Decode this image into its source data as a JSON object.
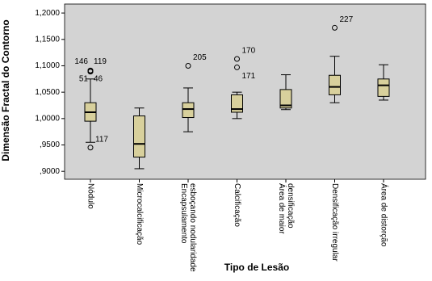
{
  "chart_data": {
    "type": "boxplot",
    "x_label": "Tipo de Lesão",
    "y_label": "Dimensão Fractal do Contorno",
    "categories": [
      "Nódulo",
      "Microcalcificação",
      "Encapsulamento esboçando nodularidade",
      "Calcificação",
      "Área de maior densificação",
      "Densificação irregular",
      "Área de distorção"
    ],
    "boxes": [
      {
        "whisker_low": 0.955,
        "q1": 0.995,
        "median": 1.012,
        "q3": 1.03,
        "whisker_high": 1.075,
        "outliers": [
          {
            "value": 1.091,
            "label": "146"
          },
          {
            "value": 1.091,
            "label": "119"
          },
          {
            "value": 1.089,
            "label": "51"
          },
          {
            "value": 1.089,
            "label": "46"
          },
          {
            "value": 0.945,
            "label": "117"
          }
        ]
      },
      {
        "whisker_low": 0.905,
        "q1": 0.927,
        "median": 0.952,
        "q3": 1.005,
        "whisker_high": 1.02,
        "outliers": []
      },
      {
        "whisker_low": 0.975,
        "q1": 1.002,
        "median": 1.018,
        "q3": 1.03,
        "whisker_high": 1.058,
        "outliers": [
          {
            "value": 1.1,
            "label": "205"
          }
        ]
      },
      {
        "whisker_low": 1.0,
        "q1": 1.012,
        "median": 1.018,
        "q3": 1.045,
        "whisker_high": 1.05,
        "outliers": [
          {
            "value": 1.113,
            "label": "170"
          },
          {
            "value": 1.097,
            "label": "171"
          }
        ]
      },
      {
        "whisker_low": 1.017,
        "q1": 1.02,
        "median": 1.025,
        "q3": 1.055,
        "whisker_high": 1.083,
        "outliers": []
      },
      {
        "whisker_low": 1.03,
        "q1": 1.045,
        "median": 1.06,
        "q3": 1.082,
        "whisker_high": 1.118,
        "outliers": [
          {
            "value": 1.172,
            "label": "227"
          }
        ]
      },
      {
        "whisker_low": 1.035,
        "q1": 1.042,
        "median": 1.063,
        "q3": 1.075,
        "whisker_high": 1.102,
        "outliers": []
      }
    ],
    "color": "#d8d09c",
    "background": "#d3d3d3",
    "ylim": [
      0.885,
      1.217
    ],
    "yticks": [
      {
        "value": 0.9,
        "label": ",9000"
      },
      {
        "value": 0.95,
        "label": ",9500"
      },
      {
        "value": 1.0,
        "label": "1,0000"
      },
      {
        "value": 1.05,
        "label": "1,0500"
      },
      {
        "value": 1.1,
        "label": "1,1000"
      },
      {
        "value": 1.15,
        "label": "1,1500"
      },
      {
        "value": 1.2,
        "label": "1,2000"
      }
    ]
  }
}
